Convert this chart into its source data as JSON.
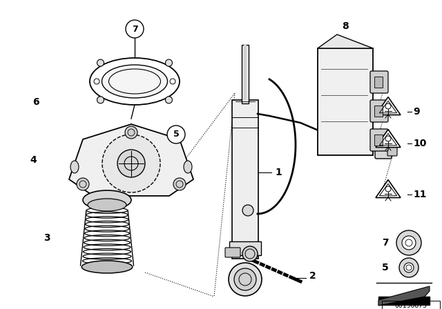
{
  "bg_color": "#ffffff",
  "line_color": "#000000",
  "text_color": "#000000",
  "part_number": "00196875",
  "fig_width": 6.4,
  "fig_height": 4.48,
  "dpi": 100
}
